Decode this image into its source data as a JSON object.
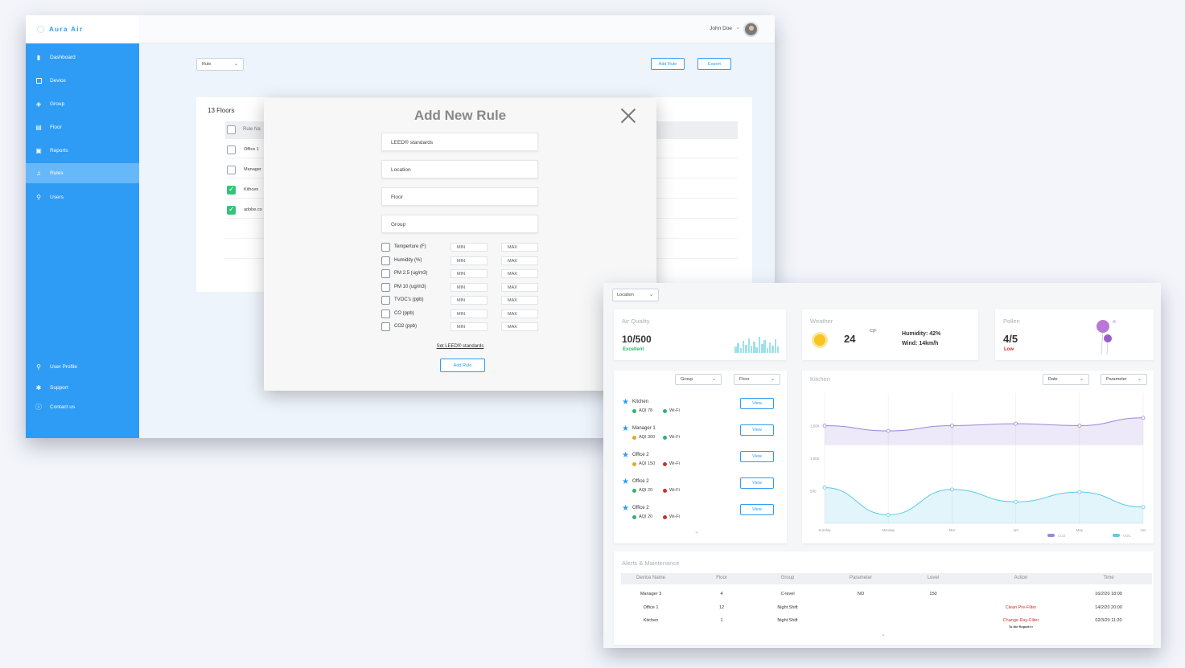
{
  "app": {
    "name": "Aura Air"
  },
  "sidebar": {
    "items": [
      {
        "label": "Dashboard",
        "icon": "bar-chart-icon"
      },
      {
        "label": "Device",
        "icon": "device-icon"
      },
      {
        "label": "Group",
        "icon": "group-icon"
      },
      {
        "label": "Floor",
        "icon": "floor-icon"
      },
      {
        "label": "Reports",
        "icon": "reports-icon"
      },
      {
        "label": "Rules",
        "icon": "bell-icon"
      },
      {
        "label": "Users",
        "icon": "user-add-icon"
      }
    ],
    "bottom": [
      {
        "label": "User Profile",
        "icon": "user-icon"
      },
      {
        "label": "Support",
        "icon": "gear-icon"
      },
      {
        "label": "Contact us",
        "icon": "info-icon"
      }
    ],
    "active_index": 5
  },
  "header": {
    "user_name": "John Doe"
  },
  "rules_page": {
    "rule_select": "Rule",
    "add_rule_label": "Add Rule",
    "export_label": "Export",
    "floors_title": "13 Floors",
    "col_rule_name": "Rule Na",
    "rows": [
      {
        "name": "Office 1",
        "checked": false
      },
      {
        "name": "Manager",
        "checked": false
      },
      {
        "name": "Kithcen",
        "checked": true
      },
      {
        "name": "adobe.co",
        "checked": true
      }
    ]
  },
  "modal": {
    "title": "Add New Rule",
    "fields": [
      "LEED® standards",
      "Location",
      "Floor",
      "Group"
    ],
    "params": [
      "Temperture (F)",
      "Humidity (%)",
      "PM 2.5 (ug/m3)",
      "PM 10 (ug/m3)",
      "TVOC's (ppb)",
      "CO (ppb)",
      "CO2 (ppb)"
    ],
    "min_placeholder": "MIN",
    "max_placeholder": "MAX",
    "set_leed": "Set LEED® standards",
    "add_button": "Add Rule"
  },
  "dashboard": {
    "location_select": "Location",
    "air_quality": {
      "label": "Air Quality",
      "value": "10/500",
      "status": "Excellent",
      "status_color": "#2fb36e"
    },
    "weather": {
      "label": "Weather",
      "temp": "24",
      "unit": "C|F",
      "humidity": "Humidity: 42%",
      "wind": "Wind: 14km/h"
    },
    "pollen": {
      "label": "Pollen",
      "value": "4/5",
      "status": "Low",
      "status_color": "#d0302b"
    },
    "filters": {
      "group": "Group",
      "floor": "Floor",
      "date": "Date",
      "parameter": "Parameter"
    },
    "locations": [
      {
        "name": "Kitchen",
        "aqi": "AQI 78",
        "aqi_color": "#2fb36e",
        "wifi": "Wi-Fi",
        "wifi_color": "#2fb36e",
        "view": "View"
      },
      {
        "name": "Manager 1",
        "aqi": "AQI 300",
        "aqi_color": "#e0a82a",
        "wifi": "Wi-Fi",
        "wifi_color": "#2fb36e",
        "view": "View"
      },
      {
        "name": "Office 2",
        "aqi": "AQI 150",
        "aqi_color": "#e0a82a",
        "wifi": "Wi-Fi",
        "wifi_color": "#d0302b",
        "view": "View"
      },
      {
        "name": "Office 2",
        "aqi": "AQI 20",
        "aqi_color": "#2fb36e",
        "wifi": "Wi-Fi",
        "wifi_color": "#d0302b",
        "view": "View"
      },
      {
        "name": "Office 2",
        "aqi": "AQI 20",
        "aqi_color": "#2fb36e",
        "wifi": "Wi-Fi",
        "wifi_color": "#d0302b",
        "view": "View"
      }
    ],
    "chart_title": "Kitchen",
    "alerts": {
      "title": "Alerts & Maintenance",
      "columns": [
        "Device Name",
        "Floor",
        "Group",
        "Parameter",
        "Level",
        "Action",
        "Time"
      ],
      "rows": [
        {
          "device": "Manager 3",
          "floor": "4",
          "group": "C-level",
          "parameter": "NO",
          "level": "150",
          "action": "",
          "time": "16/2/20 18:00"
        },
        {
          "device": "Office 1",
          "floor": "12",
          "group": "Night Shift",
          "parameter": "",
          "level": "",
          "action": "Clean Pre-Filter",
          "time": "14/2/20 20:00"
        },
        {
          "device": "Kitchen",
          "floor": "1",
          "group": "Night Shift",
          "parameter": "",
          "level": "",
          "action": "Change Ray-Filter",
          "action_sub": "To the Report>>",
          "time": "02/3/20 11:20"
        }
      ]
    }
  },
  "chart_data": {
    "type": "line",
    "categories": [
      "Sunday",
      "Monday",
      "Mar",
      "Apr",
      "May",
      "Jun"
    ],
    "y_ticks": [
      "1,500",
      "1,000",
      "500"
    ],
    "ylim": [
      0,
      2000
    ],
    "series": [
      {
        "name": "CO2",
        "color": "#9a86e0",
        "values": [
          1500,
          1420,
          1500,
          1530,
          1500,
          1620
        ]
      },
      {
        "name": "VOC",
        "color": "#5cc9e8",
        "values": [
          550,
          130,
          520,
          330,
          480,
          250
        ]
      }
    ]
  }
}
